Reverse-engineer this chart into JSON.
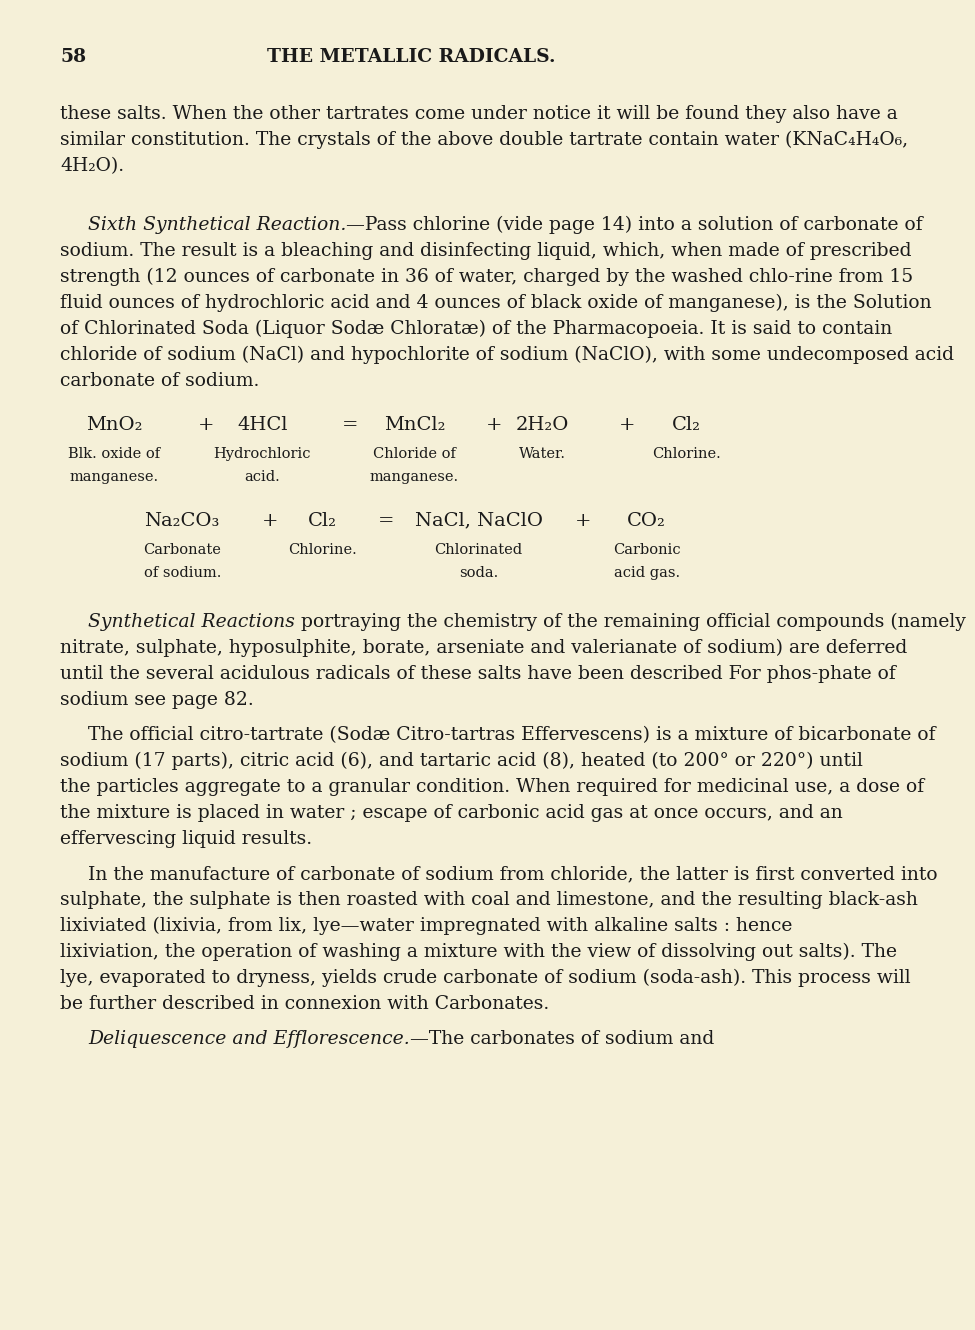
{
  "bg_color": "#f5f0d8",
  "text_color": "#1a1a1a",
  "page_number": "58",
  "header": "THE METALLIC RADICALS.",
  "eq1": {
    "parts": [
      [
        "MnO₂",
        0.13
      ],
      [
        "+",
        0.245
      ],
      [
        "4HCl",
        0.315
      ],
      [
        "=",
        0.425
      ],
      [
        "MnCl₂",
        0.505
      ],
      [
        "+",
        0.605
      ],
      [
        "2H₂O",
        0.665
      ],
      [
        "+",
        0.77
      ],
      [
        "Cl₂",
        0.845
      ]
    ],
    "labels_r1": [
      [
        "Blk. oxide of",
        0.13
      ],
      [
        "Hydrochloric",
        0.315
      ],
      [
        "Chloride of",
        0.505
      ],
      [
        "Water.",
        0.665
      ],
      [
        "Chlorine.",
        0.845
      ]
    ],
    "labels_r2": [
      [
        "manganese.",
        0.13
      ],
      [
        "acid.",
        0.315
      ],
      [
        "manganese.",
        0.505
      ]
    ]
  },
  "eq2": {
    "parts": [
      [
        "Na₂CO₃",
        0.215
      ],
      [
        "+",
        0.325
      ],
      [
        "Cl₂",
        0.39
      ],
      [
        "=",
        0.47
      ],
      [
        "NaCl, NaClO",
        0.585
      ],
      [
        "+",
        0.715
      ],
      [
        "CO₂",
        0.795
      ]
    ],
    "labels_r1": [
      [
        "Carbonate",
        0.215
      ],
      [
        "Chlorine.",
        0.39
      ],
      [
        "Chlorinated",
        0.585
      ],
      [
        "Carbonic",
        0.795
      ]
    ],
    "labels_r2": [
      [
        "of sodium.",
        0.215
      ],
      [
        "soda.",
        0.585
      ],
      [
        "acid gas.",
        0.795
      ]
    ]
  },
  "para1": "these salts.  When the other tartrates come under notice it will be found they also have a similar constitution.  The crystals of the above double tartrate contain water (KNaC₄H₄O₆, 4H₂O).",
  "para2_italic": "Sixth Synthetical Reaction.",
  "para2_rest": "—Pass chlorine (vide page 14) into a solution of carbonate of sodium.  The result is a bleaching and disinfecting liquid, which, when made of prescribed strength (12 ounces of carbonate in 36 of water, charged by the washed chlo-rine from 15 fluid ounces of hydrochloric acid  and  4 ounces of black oxide of manganese), is the Solution of Chlorinated Soda (Liquor Sodæ Chloratæ) of the Pharmacopoeia.  It is said to contain chloride of sodium (NaCl) and hypochlorite of sodium (NaClO), with some undecomposed acid carbonate of sodium.",
  "para3_italic": "Synthetical Reactions",
  "para3_rest": " portraying the chemistry of the remaining official compounds (namely nitrate, sulphate, hyposulphite, borate, arseniate and valerianate of sodium) are deferred until the several acidulous radicals of these salts have been described  For phos-phate of sodium see page 82.",
  "para4": "The official citro-tartrate (Sodæ Citro-tartras Effervescens) is a mixture of bicarbonate of sodium (17 parts), citric acid (6), and tartaric acid (8), heated (to 200° or 220°) until the particles aggregate to a granular condition.  When required for medicinal use, a dose of the mixture is placed in water ; escape of carbonic acid gas at once occurs, and an effervescing liquid results.",
  "para5": "In the manufacture of carbonate of sodium from chloride, the latter is first converted into sulphate, the sulphate is then roasted with coal and limestone, and the resulting black-ash lixiviated (lixivia, from lix, lye—water impregnated with alkaline salts : hence lixiviation, the operation of washing a mixture with the view of dissolving out salts).  The lye, evaporated to dryness, yields crude carbonate of sodium (soda-ash).  This process will be further described in connexion with Carbonates.",
  "para6_italic": "Deliquescence and Efflorescence.",
  "para6_rest": "—The carbonates of sodium and"
}
